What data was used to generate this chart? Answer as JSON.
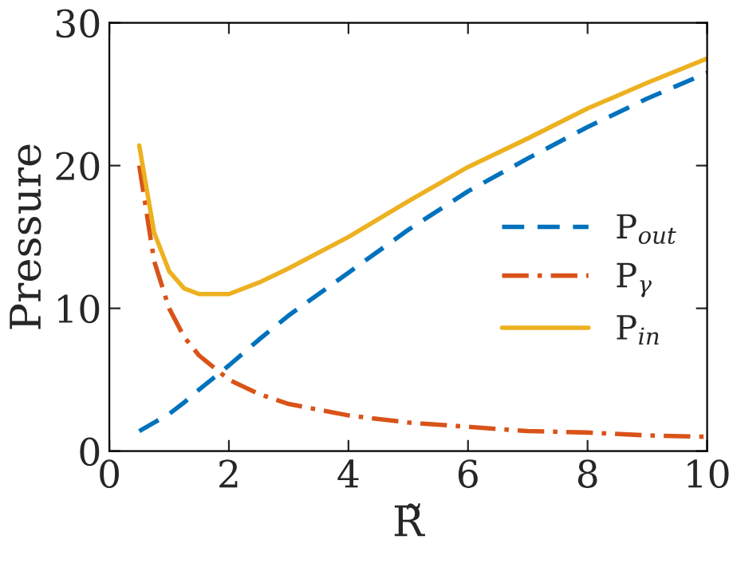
{
  "chart_data": {
    "type": "line",
    "xlabel": "R̃",
    "ylabel": "Pressure",
    "x": [
      0.5,
      0.75,
      1,
      1.25,
      1.5,
      2,
      2.5,
      3,
      4,
      5,
      6,
      7,
      8,
      9,
      10
    ],
    "series": [
      {
        "name": "P$_{out}$",
        "color": "#0072bd",
        "line_style": "dashed",
        "values": [
          1.4,
          2,
          2.6,
          3.4,
          4.3,
          6,
          7.8,
          9.5,
          12.5,
          15.5,
          18.2,
          20.5,
          22.7,
          24.7,
          26.5
        ]
      },
      {
        "name": "P$_{γ}$",
        "color": "#d95319",
        "line_style": "dashdot",
        "values": [
          20,
          13.3,
          10,
          8,
          6.7,
          5,
          4,
          3.3,
          2.5,
          2,
          1.7,
          1.4,
          1.3,
          1.1,
          1
        ]
      },
      {
        "name": "P$_{in}$",
        "color": "#edb120",
        "line_style": "solid",
        "values": [
          21.4,
          15.3,
          12.6,
          11.4,
          11,
          11,
          11.8,
          12.8,
          15,
          17.5,
          19.9,
          21.9,
          24,
          25.8,
          27.5
        ]
      }
    ],
    "xlim": [
      0,
      10
    ],
    "ylim": [
      0,
      30
    ],
    "xticks": [
      0,
      2,
      4,
      6,
      8,
      10
    ],
    "yticks": [
      0,
      10,
      20,
      30
    ],
    "legend": "right",
    "marker": "none",
    "grid": false
  }
}
